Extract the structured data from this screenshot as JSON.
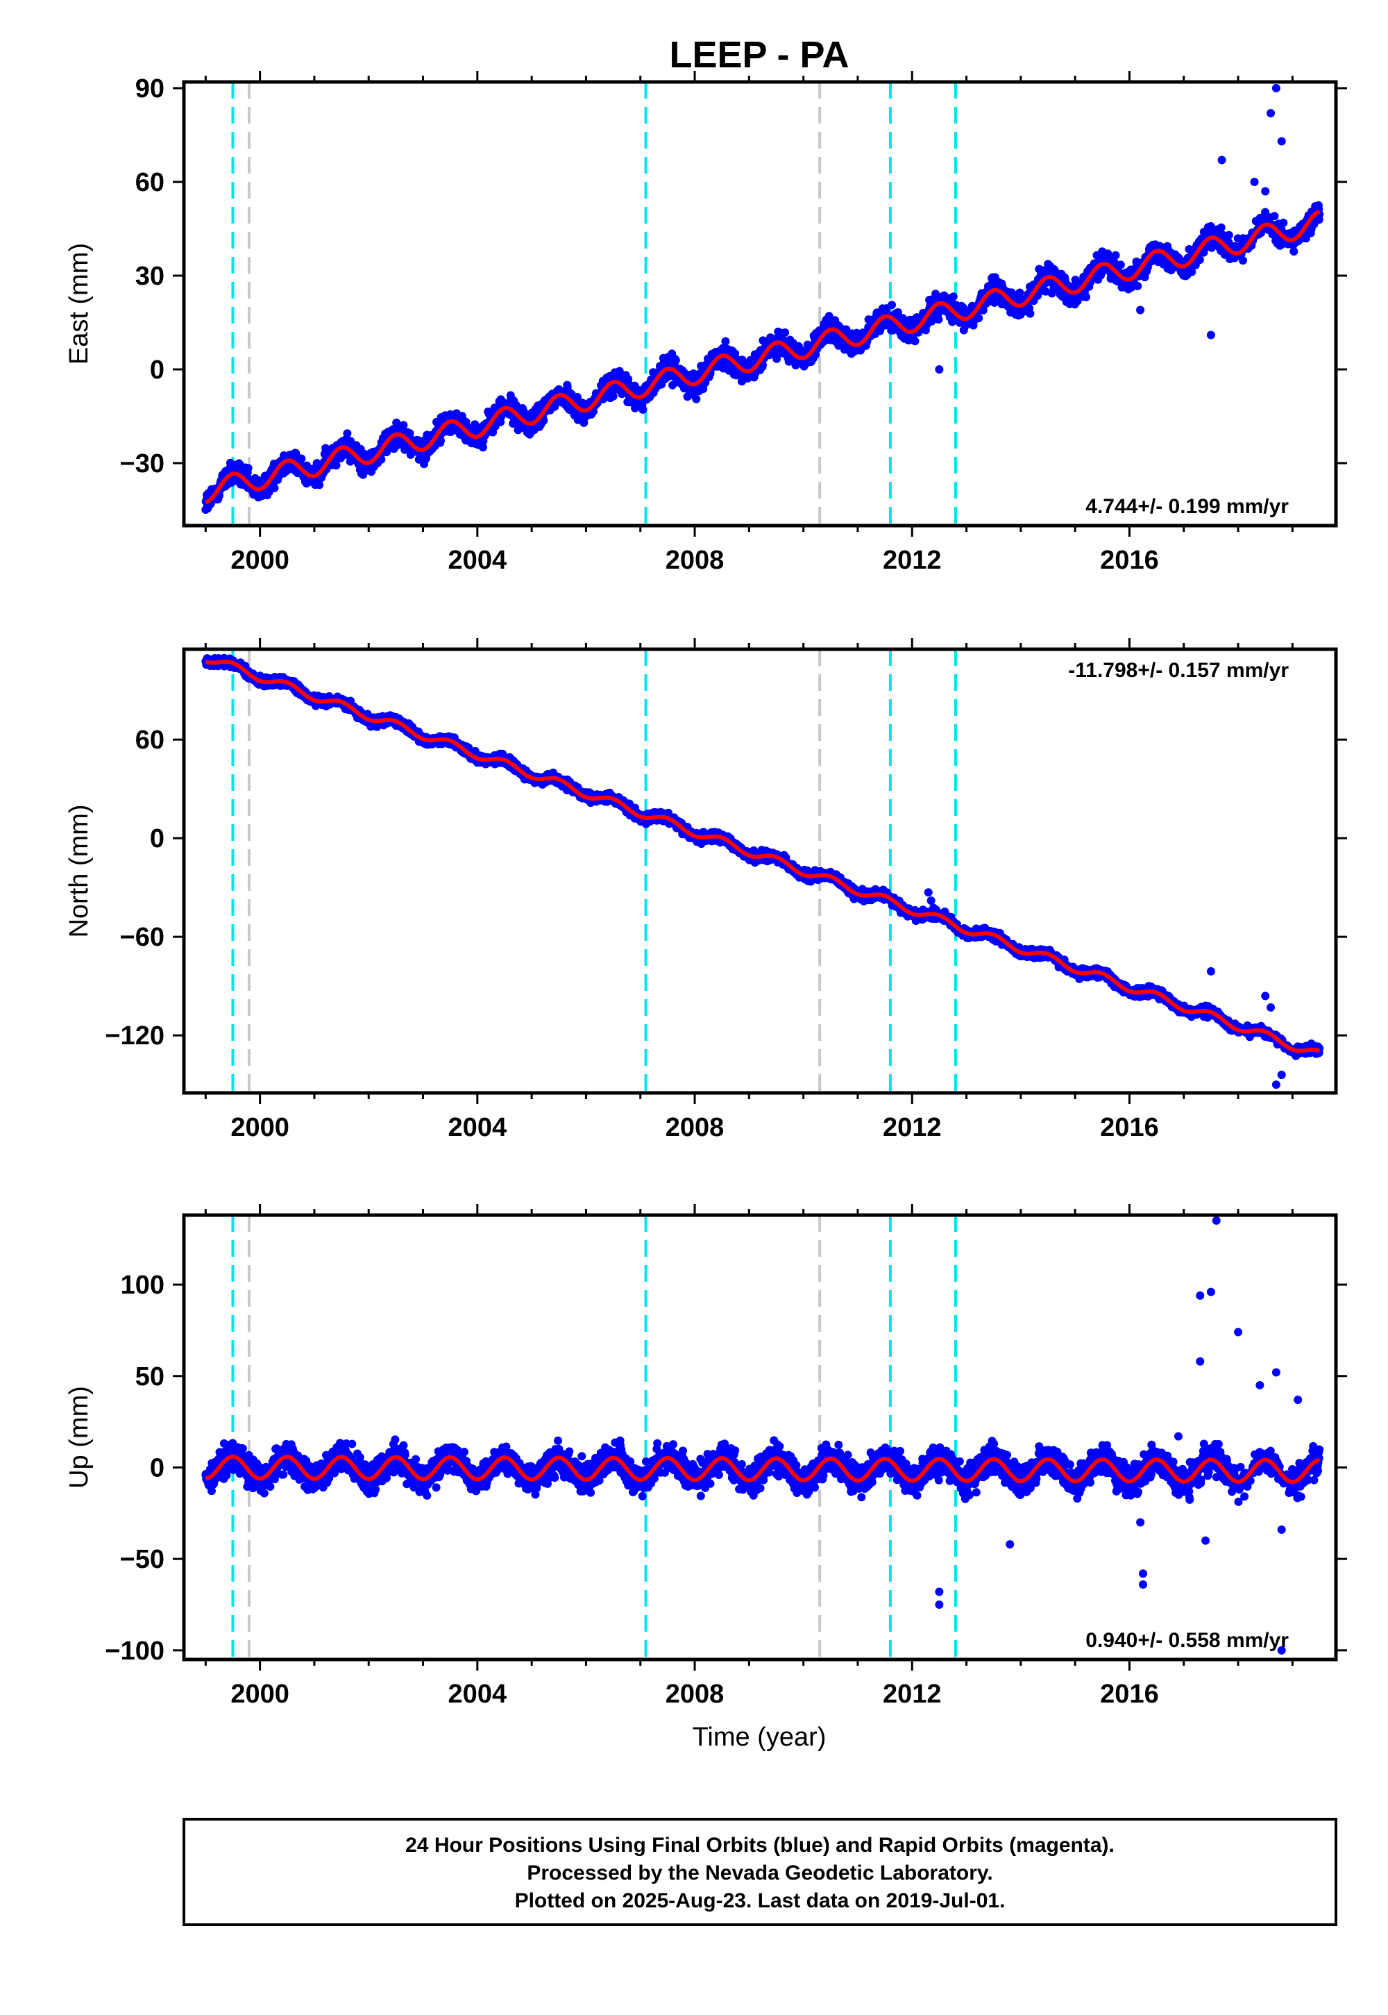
{
  "figure_title": "LEEP - PA",
  "x_axis_label": "Time (year)",
  "footer": {
    "line1": "24 Hour Positions Using Final Orbits (blue) and Rapid Orbits (magenta).",
    "line2": "Processed by the Nevada Geodetic Laboratory.",
    "line3": "Plotted on 2025-Aug-23. Last data on 2019-Jul-01."
  },
  "colors": {
    "final_orbits": "#0000ff",
    "model_fit": "#ff0000",
    "equipment_change_lines": "#00e5ee",
    "earthquake_lines": "#c8c8c8"
  },
  "chart_data": [
    {
      "type": "scatter",
      "component": "east",
      "ylabel": "East (mm)",
      "rate_label": "4.744+/- 0.199 mm/yr",
      "rate_position": "bottom-right",
      "xlim": [
        1998.6,
        2019.8
      ],
      "ylim": [
        -50,
        92
      ],
      "xticks": [
        2000,
        2004,
        2008,
        2012,
        2016
      ],
      "yticks": [
        -30,
        0,
        30,
        60,
        90
      ],
      "series": [
        {
          "name": "Final Orbits",
          "style": "points",
          "start_year": 1999.0,
          "end_year": 2019.5,
          "start_value": -39,
          "end_value": 47,
          "seasonal_amplitude": 3.5,
          "scatter_mm": 2.5
        },
        {
          "name": "Model fit",
          "style": "line"
        }
      ],
      "outliers": [
        {
          "x": 2012.5,
          "y": 0
        },
        {
          "x": 2017.5,
          "y": 11
        },
        {
          "x": 2017.7,
          "y": 67
        },
        {
          "x": 2018.6,
          "y": 82
        },
        {
          "x": 2018.7,
          "y": 90
        },
        {
          "x": 2018.8,
          "y": 73
        },
        {
          "x": 2018.3,
          "y": 60
        },
        {
          "x": 2018.5,
          "y": 57
        },
        {
          "x": 2016.2,
          "y": 19
        }
      ],
      "vlines_cyan": [
        1999.5,
        2007.1,
        2011.6,
        2012.8
      ],
      "vlines_gray": [
        1999.8,
        2010.3
      ]
    },
    {
      "type": "scatter",
      "component": "north",
      "ylabel": "North (mm)",
      "rate_label": "-11.798+/- 0.157 mm/yr",
      "rate_position": "top-right",
      "xlim": [
        1998.6,
        2019.8
      ],
      "ylim": [
        -155,
        115
      ],
      "xticks": [
        2000,
        2004,
        2008,
        2012,
        2016
      ],
      "yticks": [
        -120,
        -60,
        0,
        60
      ],
      "series": [
        {
          "name": "Final Orbits",
          "style": "points",
          "start_year": 1999.0,
          "end_year": 2019.5,
          "start_value": 110,
          "end_value": -132,
          "seasonal_amplitude": 2.5,
          "scatter_mm": 2.0
        },
        {
          "name": "Model fit",
          "style": "line"
        }
      ],
      "outliers": [
        {
          "x": 2012.3,
          "y": -33
        },
        {
          "x": 2012.35,
          "y": -38
        },
        {
          "x": 2016.3,
          "y": -92
        },
        {
          "x": 2017.5,
          "y": -81
        },
        {
          "x": 2018.5,
          "y": -96
        },
        {
          "x": 2018.7,
          "y": -150
        },
        {
          "x": 2018.8,
          "y": -144
        },
        {
          "x": 2018.6,
          "y": -103
        }
      ],
      "vlines_cyan": [
        1999.5,
        2007.1,
        2011.6,
        2012.8
      ],
      "vlines_gray": [
        1999.8,
        2010.3
      ]
    },
    {
      "type": "scatter",
      "component": "up",
      "ylabel": "Up (mm)",
      "rate_label": "0.940+/- 0.558 mm/yr",
      "rate_position": "bottom-right",
      "xlim": [
        1998.6,
        2019.8
      ],
      "ylim": [
        -105,
        138
      ],
      "xticks": [
        2000,
        2004,
        2008,
        2012,
        2016
      ],
      "yticks": [
        -100,
        -50,
        0,
        50,
        100
      ],
      "series": [
        {
          "name": "Final Orbits",
          "style": "points",
          "start_year": 1999.0,
          "end_year": 2019.5,
          "start_value": 0,
          "end_value": -2,
          "seasonal_amplitude": 6,
          "scatter_mm": 5.5
        },
        {
          "name": "Model fit",
          "style": "line"
        }
      ],
      "outliers": [
        {
          "x": 2012.5,
          "y": -68
        },
        {
          "x": 2012.5,
          "y": -75
        },
        {
          "x": 2013.8,
          "y": -42
        },
        {
          "x": 2016.2,
          "y": -30
        },
        {
          "x": 2016.25,
          "y": -58
        },
        {
          "x": 2016.25,
          "y": -64
        },
        {
          "x": 2017.3,
          "y": 58
        },
        {
          "x": 2017.3,
          "y": 94
        },
        {
          "x": 2017.5,
          "y": 96
        },
        {
          "x": 2017.6,
          "y": 135
        },
        {
          "x": 2017.4,
          "y": -40
        },
        {
          "x": 2018.0,
          "y": 74
        },
        {
          "x": 2018.4,
          "y": 45
        },
        {
          "x": 2018.7,
          "y": 52
        },
        {
          "x": 2018.8,
          "y": -34
        },
        {
          "x": 2018.8,
          "y": -100
        },
        {
          "x": 2019.1,
          "y": 37
        },
        {
          "x": 2016.9,
          "y": 17
        }
      ],
      "vlines_cyan": [
        1999.5,
        2007.1,
        2011.6,
        2012.8
      ],
      "vlines_gray": [
        1999.8,
        2010.3
      ]
    }
  ]
}
